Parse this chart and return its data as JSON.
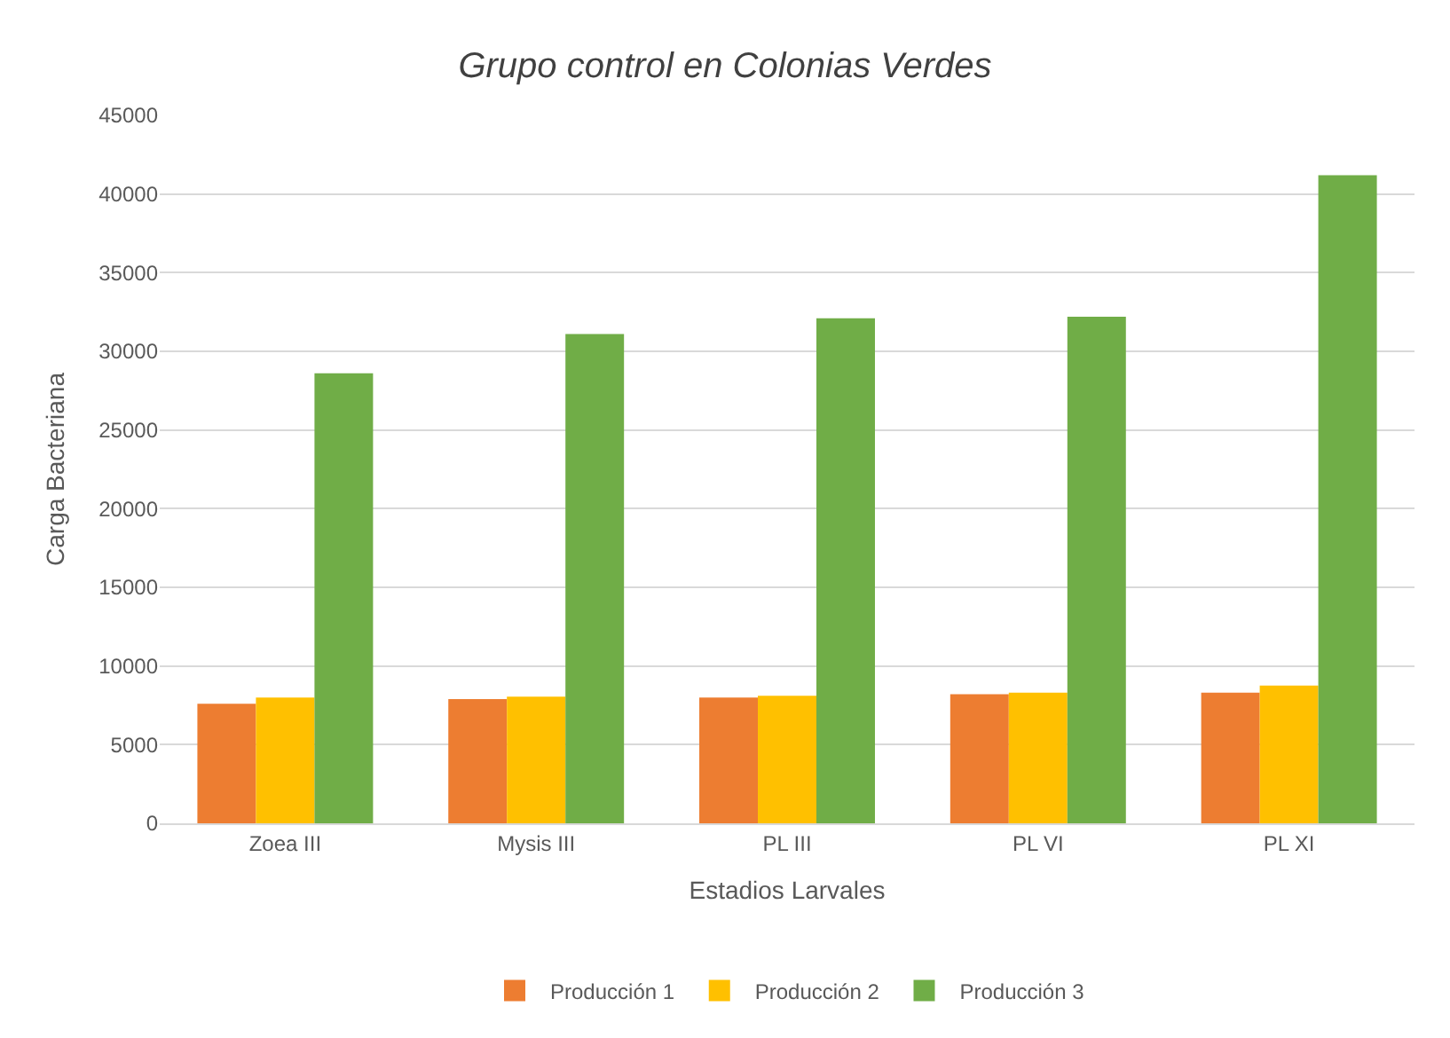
{
  "chart_data": {
    "type": "bar",
    "title": "Grupo control en Colonias Verdes",
    "xlabel": "Estadios Larvales",
    "ylabel": "Carga Bacteriana",
    "categories": [
      "Zoea III",
      "Mysis III",
      "PL III",
      "PL VI",
      "PL XI"
    ],
    "series": [
      {
        "name": "Producción 1",
        "color": "#ed7d31",
        "values": [
          7600,
          7900,
          8000,
          8200,
          8300
        ]
      },
      {
        "name": "Producción 2",
        "color": "#ffc000",
        "values": [
          8000,
          8050,
          8100,
          8300,
          8750
        ]
      },
      {
        "name": "Producción 3",
        "color": "#70ad47",
        "values": [
          28600,
          31100,
          32100,
          32200,
          41200
        ]
      }
    ],
    "ylim": [
      0,
      45000
    ],
    "yticks": [
      0,
      5000,
      10000,
      15000,
      20000,
      25000,
      30000,
      35000,
      40000,
      45000
    ],
    "grid": "y",
    "legend": "bottom"
  }
}
